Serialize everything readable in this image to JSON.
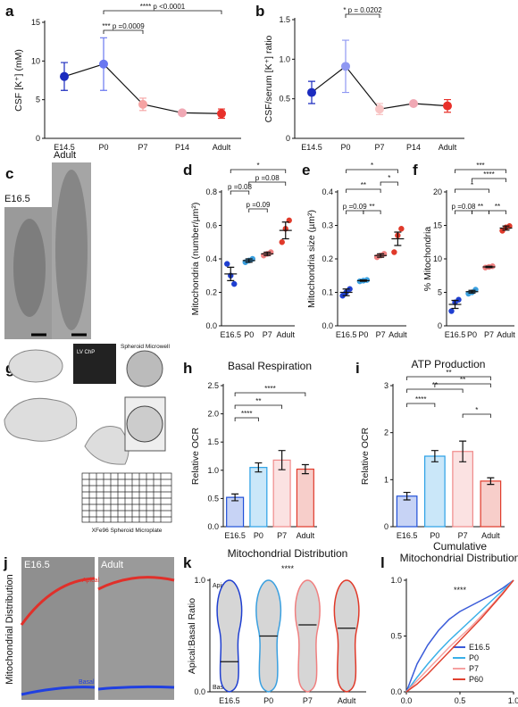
{
  "chart_data": [
    {
      "panel": "a",
      "type": "line",
      "ylabel": "CSF [K⁺] (mM)",
      "categories": [
        "E14.5",
        "P0",
        "P7",
        "P14",
        "Adult"
      ],
      "values": [
        8.0,
        9.6,
        4.4,
        3.3,
        3.2
      ],
      "errors": [
        1.8,
        3.4,
        0.8,
        0.2,
        0.6
      ],
      "colors": [
        "#1b2bbf",
        "#6a78f0",
        "#f5a3a3",
        "#f0a8b4",
        "#e8302a"
      ],
      "ylim": [
        0,
        15
      ],
      "yticks": [
        0,
        5,
        10,
        15
      ],
      "annotations": [
        "**** p <0.0001",
        "*** p =0.0009"
      ]
    },
    {
      "panel": "b",
      "type": "line",
      "ylabel": "CSF/serum [K⁺] ratio",
      "categories": [
        "E14.5",
        "P0",
        "P7",
        "P14",
        "Adult"
      ],
      "values": [
        0.58,
        0.91,
        0.37,
        0.44,
        0.41
      ],
      "errors": [
        0.14,
        0.33,
        0.07,
        0.02,
        0.08
      ],
      "colors": [
        "#1b2bbf",
        "#8f98f2",
        "#f8c4c4",
        "#f0a8b4",
        "#e8302a"
      ],
      "ylim": [
        0,
        1.5
      ],
      "yticks": [
        0,
        0.5,
        {
          "value": 1,
          "label": "1.0"
        },
        1.5
      ],
      "annotations": [
        "* p = 0.0202"
      ]
    },
    {
      "panel": "d",
      "type": "strip",
      "ylabel": "Mitochondria (number/µm²)",
      "categories": [
        "E16.5",
        "P0",
        "P7",
        "Adult"
      ],
      "values": [
        0.31,
        0.39,
        0.43,
        0.57
      ],
      "errors": [
        0.04,
        0.01,
        0.01,
        0.05
      ],
      "points": [
        [
          0.37,
          0.3,
          0.25
        ],
        [
          0.38,
          0.39,
          0.4
        ],
        [
          0.42,
          0.43,
          0.44
        ],
        [
          0.5,
          0.58,
          0.63
        ]
      ],
      "colors": [
        "#1f3fd1",
        "#3aa0e0",
        "#f08080",
        "#e03a2a"
      ],
      "ylim": [
        0,
        0.8
      ],
      "yticks": [
        {
          "value": 0,
          "label": "0.0"
        },
        0.2,
        0.4,
        0.6,
        0.8
      ],
      "annotations": [
        "*",
        "p =0.08",
        "p =0.08",
        "p =0.09"
      ]
    },
    {
      "panel": "e",
      "type": "strip",
      "ylabel": "Mitochondria size (µm²)",
      "categories": [
        "E16.5",
        "P0",
        "P7",
        "Adult"
      ],
      "values": [
        0.1,
        0.135,
        0.21,
        0.26
      ],
      "errors": [
        0.01,
        0.002,
        0.005,
        0.02
      ],
      "points": [
        [
          0.09,
          0.1,
          0.11
        ],
        [
          0.133,
          0.135,
          0.137
        ],
        [
          0.205,
          0.21,
          0.215
        ],
        [
          0.22,
          0.27,
          0.29
        ]
      ],
      "colors": [
        "#1f3fd1",
        "#3aa0e0",
        "#f08080",
        "#e03a2a"
      ],
      "ylim": [
        0,
        0.4
      ],
      "yticks": [
        {
          "value": 0,
          "label": "0.0"
        },
        0.1,
        0.2,
        0.3,
        0.4
      ],
      "annotations": [
        "*",
        "**",
        "*",
        "p =0.09",
        "**"
      ]
    },
    {
      "panel": "f",
      "type": "strip",
      "ylabel": "% Mitochondria",
      "categories": [
        "E16.5",
        "P0",
        "P7",
        "Adult"
      ],
      "values": [
        3.2,
        5.1,
        8.8,
        14.6
      ],
      "errors": [
        0.6,
        0.2,
        0.1,
        0.3
      ],
      "points": [
        [
          2.2,
          3.5,
          3.9
        ],
        [
          4.8,
          5.0,
          5.4
        ],
        [
          8.7,
          8.8,
          8.9
        ],
        [
          14.2,
          14.7,
          14.9
        ]
      ],
      "colors": [
        "#1f3fd1",
        "#3aa0e0",
        "#f08080",
        "#e03a2a"
      ],
      "ylim": [
        0,
        20
      ],
      "yticks": [
        0,
        5,
        10,
        15,
        20
      ],
      "annotations": [
        "***",
        "*",
        "****",
        "p =0.08",
        "**",
        "**"
      ]
    },
    {
      "panel": "h",
      "type": "bar",
      "title": "Basal Respiration",
      "ylabel": "Relative OCR",
      "categories": [
        "E16.5",
        "P0",
        "P7",
        "Adult"
      ],
      "values": [
        0.52,
        1.05,
        1.18,
        1.02
      ],
      "errors": [
        0.06,
        0.08,
        0.17,
        0.08
      ],
      "colors": [
        "#1f4fd8",
        "#2aa0e6",
        "#f08a8a",
        "#e03a2a"
      ],
      "ylim": [
        0,
        2.5
      ],
      "yticks": [
        {
          "value": 0,
          "label": "0.0"
        },
        0.5,
        {
          "value": 1,
          "label": "1.0"
        },
        1.5,
        {
          "value": 2,
          "label": "2.0"
        },
        2.5
      ],
      "annotations": [
        "****",
        "**",
        "****"
      ]
    },
    {
      "panel": "i",
      "type": "bar",
      "title": "ATP Production",
      "ylabel": "Relative OCR",
      "categories": [
        "E16.5",
        "P0",
        "P7",
        "Adult"
      ],
      "values": [
        0.65,
        1.5,
        1.6,
        0.97
      ],
      "errors": [
        0.08,
        0.12,
        0.22,
        0.07
      ],
      "colors": [
        "#1f4fd8",
        "#2aa0e6",
        "#f08a8a",
        "#e03a2a"
      ],
      "ylim": [
        0,
        3
      ],
      "yticks": [
        0,
        1,
        2,
        3
      ],
      "annotations": [
        "**",
        "**",
        "**",
        "****",
        "*"
      ]
    },
    {
      "panel": "k",
      "type": "violin",
      "title": "Mitochondrial Distribution",
      "ylabel": "Apical:Basal Ratio",
      "categories": [
        "E16.5",
        "P0",
        "P7",
        "Adult"
      ],
      "values": [
        0.27,
        0.5,
        0.6,
        0.57
      ],
      "colors": [
        "#1f3fd1",
        "#3aa0e0",
        "#f08080",
        "#e03a2a"
      ],
      "ylim": [
        0,
        1
      ],
      "yticks": [
        {
          "value": 0,
          "label": "0.0"
        },
        {
          "value": 1,
          "label": "1.0"
        }
      ],
      "top_label": "Apical",
      "bottom_label": "Basal",
      "annotations": [
        "****"
      ]
    },
    {
      "panel": "l",
      "type": "line",
      "title": [
        "Cumulative",
        "Mitochondrial Distribution"
      ],
      "xlim": [
        0,
        1
      ],
      "xticks": [
        {
          "value": 0,
          "label": "0.0"
        },
        0.5,
        {
          "value": 1,
          "label": "1.0"
        }
      ],
      "ylim": [
        0,
        1
      ],
      "yticks": [
        {
          "value": 0,
          "label": "0.0"
        },
        0.5,
        {
          "value": 1,
          "label": "1.0"
        }
      ],
      "legend": "lower right",
      "annotations": [
        "****"
      ],
      "series": [
        {
          "name": "E16.5",
          "color": "#3a5bd9",
          "x": [
            0,
            0.1,
            0.2,
            0.3,
            0.4,
            0.5,
            0.6,
            0.7,
            0.8,
            0.9,
            1
          ],
          "values": [
            0,
            0.25,
            0.42,
            0.55,
            0.65,
            0.72,
            0.77,
            0.82,
            0.87,
            0.93,
            1
          ]
        },
        {
          "name": "P0",
          "color": "#3ab0e8",
          "x": [
            0,
            0.1,
            0.2,
            0.3,
            0.4,
            0.5,
            0.6,
            0.7,
            0.8,
            0.9,
            1
          ],
          "values": [
            0,
            0.13,
            0.25,
            0.36,
            0.46,
            0.55,
            0.64,
            0.73,
            0.82,
            0.91,
            1
          ]
        },
        {
          "name": "P7",
          "color": "#f5a0a0",
          "x": [
            0,
            0.1,
            0.2,
            0.3,
            0.4,
            0.5,
            0.6,
            0.7,
            0.8,
            0.9,
            1
          ],
          "values": [
            0,
            0.1,
            0.2,
            0.3,
            0.4,
            0.49,
            0.58,
            0.68,
            0.78,
            0.89,
            1
          ]
        },
        {
          "name": "P60",
          "color": "#e0402f",
          "x": [
            0,
            0.1,
            0.2,
            0.3,
            0.4,
            0.5,
            0.6,
            0.7,
            0.8,
            0.9,
            1
          ],
          "values": [
            0,
            0.07,
            0.16,
            0.26,
            0.36,
            0.46,
            0.56,
            0.66,
            0.77,
            0.88,
            1
          ]
        }
      ]
    }
  ],
  "images": [
    {
      "panel": "c",
      "labels": [
        "E16.5",
        "Adult"
      ]
    },
    {
      "panel": "g",
      "labels": [
        "LV ChP",
        "Spheroid Microwell",
        "XFe96 Spheroid Microplate"
      ]
    },
    {
      "panel": "j",
      "ylabel": "Mitochondrial Distribution",
      "labels": [
        "E16.5",
        "Adult",
        "Apical",
        "Basal"
      ]
    }
  ]
}
